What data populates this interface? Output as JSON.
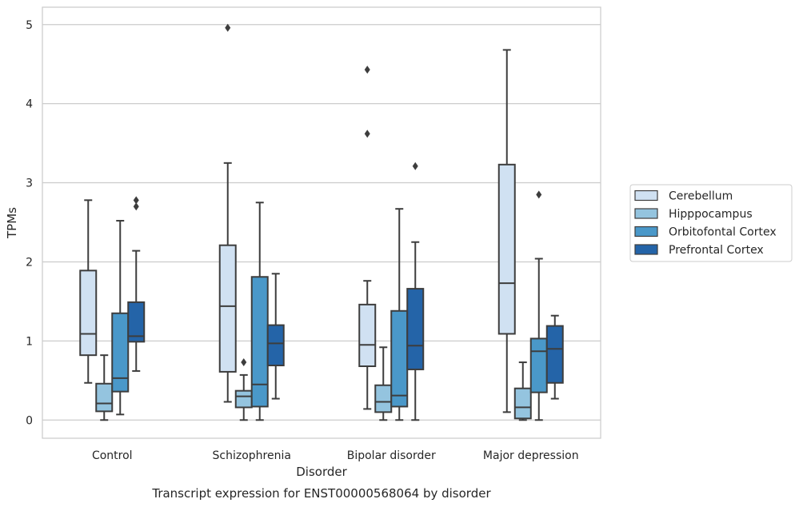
{
  "chart_data": {
    "type": "boxplot",
    "title": "Transcript expression for ENST00000568064 by disorder",
    "xlabel": "Disorder",
    "ylabel": "TPMs",
    "ylim": [
      -0.23,
      5.22
    ],
    "yticks": [
      0,
      1,
      2,
      3,
      4,
      5
    ],
    "grid": "horizontal",
    "legend_position": "right",
    "categories": [
      "Control",
      "Schizophrenia",
      "Bipolar disorder",
      "Major depression"
    ],
    "series": [
      {
        "name": "Cerebellum",
        "color": "#d0e1f2",
        "boxes": [
          {
            "whislo": 0.47,
            "q1": 0.82,
            "med": 1.09,
            "q3": 1.89,
            "whishi": 2.78,
            "fliers": []
          },
          {
            "whislo": 0.23,
            "q1": 0.61,
            "med": 1.44,
            "q3": 2.21,
            "whishi": 3.25,
            "fliers": [
              4.96
            ]
          },
          {
            "whislo": 0.14,
            "q1": 0.68,
            "med": 0.95,
            "q3": 1.46,
            "whishi": 1.76,
            "fliers": [
              3.62,
              4.43
            ]
          },
          {
            "whislo": 0.1,
            "q1": 1.09,
            "med": 1.73,
            "q3": 3.23,
            "whishi": 4.68,
            "fliers": []
          }
        ]
      },
      {
        "name": "Hipppocampus",
        "color": "#94c4df",
        "boxes": [
          {
            "whislo": 0.0,
            "q1": 0.11,
            "med": 0.21,
            "q3": 0.46,
            "whishi": 0.82,
            "fliers": []
          },
          {
            "whislo": 0.0,
            "q1": 0.16,
            "med": 0.3,
            "q3": 0.37,
            "whishi": 0.57,
            "fliers": [
              0.73
            ]
          },
          {
            "whislo": 0.0,
            "q1": 0.1,
            "med": 0.23,
            "q3": 0.44,
            "whishi": 0.92,
            "fliers": []
          },
          {
            "whislo": 0.0,
            "q1": 0.02,
            "med": 0.16,
            "q3": 0.4,
            "whishi": 0.73,
            "fliers": []
          }
        ]
      },
      {
        "name": "Orbitofontal Cortex",
        "color": "#4a98c9",
        "boxes": [
          {
            "whislo": 0.07,
            "q1": 0.36,
            "med": 0.53,
            "q3": 1.35,
            "whishi": 2.52,
            "fliers": []
          },
          {
            "whislo": 0.0,
            "q1": 0.17,
            "med": 0.45,
            "q3": 1.81,
            "whishi": 2.75,
            "fliers": []
          },
          {
            "whislo": 0.0,
            "q1": 0.17,
            "med": 0.31,
            "q3": 1.38,
            "whishi": 2.67,
            "fliers": []
          },
          {
            "whislo": 0.0,
            "q1": 0.35,
            "med": 0.87,
            "q3": 1.03,
            "whishi": 2.04,
            "fliers": [
              2.85
            ]
          }
        ]
      },
      {
        "name": "Prefrontal Cortex",
        "color": "#2464a8",
        "boxes": [
          {
            "whislo": 0.62,
            "q1": 0.99,
            "med": 1.06,
            "q3": 1.49,
            "whishi": 2.14,
            "fliers": [
              2.7,
              2.78
            ]
          },
          {
            "whislo": 0.27,
            "q1": 0.69,
            "med": 0.97,
            "q3": 1.2,
            "whishi": 1.85,
            "fliers": []
          },
          {
            "whislo": 0.0,
            "q1": 0.64,
            "med": 0.94,
            "q3": 1.66,
            "whishi": 2.25,
            "fliers": [
              3.21
            ]
          },
          {
            "whislo": 0.27,
            "q1": 0.47,
            "med": 0.9,
            "q3": 1.19,
            "whishi": 1.32,
            "fliers": []
          }
        ]
      }
    ]
  }
}
